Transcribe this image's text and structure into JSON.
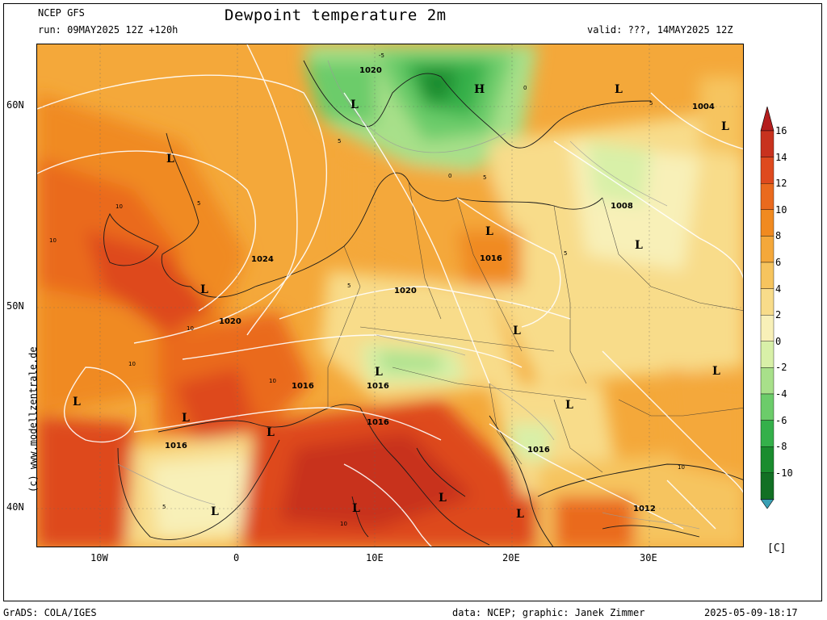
{
  "header": {
    "model": "NCEP GFS",
    "run": "run: 09MAY2025 12Z +120h",
    "title": "Dewpoint temperature 2m",
    "valid": "valid: ???, 14MAY2025 12Z"
  },
  "axes": {
    "lat_labels": [
      "60N",
      "50N",
      "40N"
    ],
    "lon_labels": [
      "10W",
      "0",
      "10E",
      "20E",
      "30E"
    ]
  },
  "colorbar": {
    "unit": "[C]",
    "ticks": [
      "16",
      "14",
      "12",
      "10",
      "8",
      "6",
      "4",
      "2",
      "0",
      "-2",
      "-4",
      "-6",
      "-8",
      "-10"
    ],
    "colors": [
      "#c8321e",
      "#de4a1e",
      "#ea6a1e",
      "#f08a20",
      "#f4a83a",
      "#f6c45e",
      "#f8dc8a",
      "#f8f0b8",
      "#d8f0a8",
      "#a8e08a",
      "#6ccc6a",
      "#34b04a",
      "#1a8c2e",
      "#127024"
    ],
    "top_arrow_color": "#b41e1e",
    "bottom_arrow_color": "#3aa0b4"
  },
  "map": {
    "pressure_labels": [
      "1020",
      "1024",
      "1020",
      "1020",
      "1016",
      "1016",
      "1016",
      "1016",
      "1016",
      "1016",
      "1008",
      "1004",
      "1012"
    ],
    "low_symbol": "L",
    "high_symbol": "H",
    "dewpoint_labels": [
      "-5",
      "0",
      "5",
      "10",
      "5",
      "0",
      "5",
      "10",
      "10",
      "10",
      "5",
      "5",
      "10",
      "5",
      "10",
      "10",
      "5"
    ]
  },
  "footer": {
    "left": "GrADS: COLA/IGES",
    "middle": "data: NCEP; graphic: Janek Zimmer",
    "right": "2025-05-09-18:17",
    "credit": "(c) www.modellzentrale.de"
  }
}
